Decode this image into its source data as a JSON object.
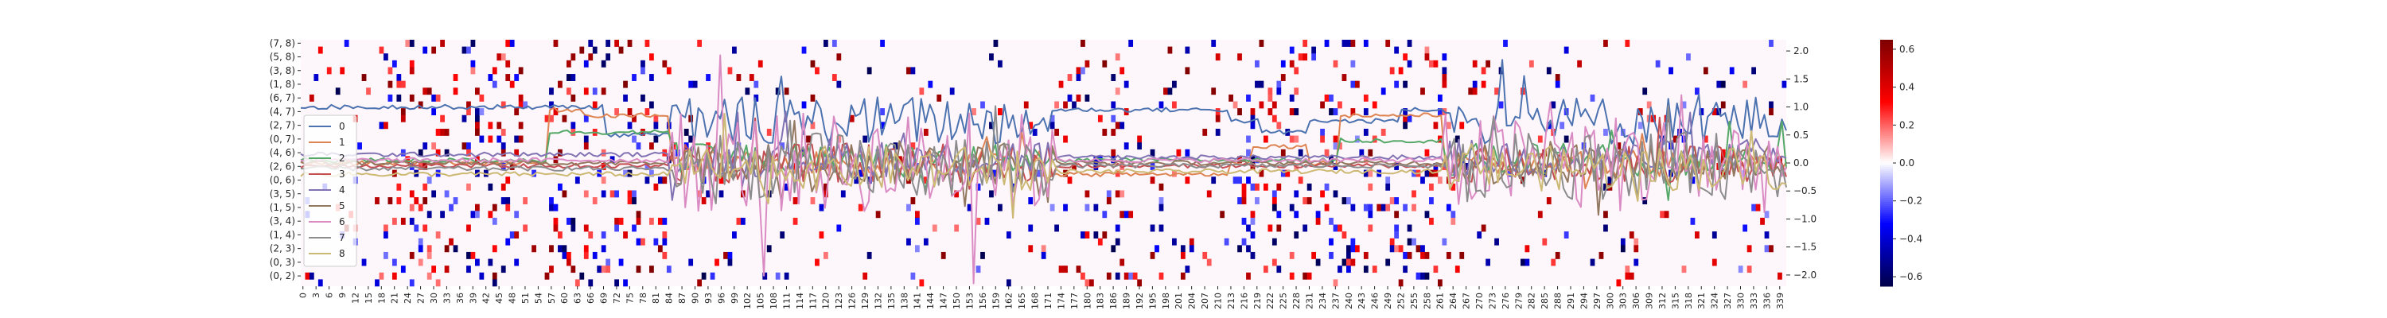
{
  "chart_data": {
    "type": "heatmap",
    "description_free": true,
    "heatmap": {
      "y_tick_labels": [
        "(7, 8)",
        "(5, 8)",
        "(3, 8)",
        "(1, 8)",
        "(6, 7)",
        "(4, 7)",
        "(2, 7)",
        "(0, 7)",
        "(4, 6)",
        "(2, 6)",
        "(0, 6)",
        "(3, 5)",
        "(1, 5)",
        "(3, 4)",
        "(1, 4)",
        "(2, 3)",
        "(0, 3)",
        "(0, 2)"
      ],
      "x_tick_labels": [
        "0",
        "3",
        "6",
        "9",
        "12",
        "15",
        "18",
        "21",
        "24",
        "27",
        "30",
        "33",
        "36",
        "39",
        "42",
        "45",
        "48",
        "51",
        "54",
        "57",
        "60",
        "63",
        "66",
        "69",
        "72",
        "75",
        "78",
        "81",
        "84",
        "87",
        "90",
        "93",
        "96",
        "99",
        "102",
        "105",
        "108",
        "111",
        "114",
        "117",
        "120",
        "123",
        "126",
        "129",
        "132",
        "135",
        "138",
        "141",
        "144",
        "147",
        "150",
        "153",
        "156",
        "159",
        "162",
        "165",
        "168",
        "171",
        "174",
        "177",
        "180",
        "183",
        "186",
        "189",
        "192",
        "195",
        "198",
        "201",
        "204",
        "207",
        "210",
        "213",
        "216",
        "219",
        "222",
        "225",
        "228",
        "231",
        "234",
        "237",
        "240",
        "243",
        "246",
        "249",
        "252",
        "255",
        "258",
        "261",
        "264",
        "267",
        "270",
        "273",
        "276",
        "279",
        "282",
        "285",
        "288",
        "291",
        "294",
        "297",
        "300",
        "303",
        "306",
        "309",
        "312",
        "315",
        "318",
        "321",
        "324",
        "327",
        "330",
        "333",
        "336",
        "339"
      ],
      "n_rows": 36,
      "n_cols": 341,
      "colormap": "seismic",
      "value_range": [
        -0.65,
        0.65
      ],
      "background_value_color": "#fdf7fb"
    },
    "colorbar": {
      "ticks": [
        "0.6",
        "0.4",
        "0.2",
        "0.0",
        "−0.2",
        "−0.4",
        "−0.6"
      ],
      "tick_values": [
        0.6,
        0.4,
        0.2,
        0.0,
        -0.2,
        -0.4,
        -0.6
      ],
      "range": [
        -0.65,
        0.65
      ]
    },
    "line_overlay": {
      "ylim": [
        -2.2,
        2.2
      ],
      "y_ticks": [
        "2.0",
        "1.5",
        "1.0",
        "0.5",
        "0.0",
        "−0.5",
        "−1.0",
        "−1.5",
        "−2.0"
      ],
      "y_tick_values": [
        2.0,
        1.5,
        1.0,
        0.5,
        0.0,
        -0.5,
        -1.0,
        -1.5,
        -2.0
      ],
      "x_range": [
        0,
        340
      ],
      "series": [
        {
          "name": "0",
          "color": "#4c72b0",
          "segments": [
            {
              "x": [
                0,
                70
              ],
              "level": 1.0
            },
            {
              "x": [
                70,
                84
              ],
              "level": 0.5
            },
            {
              "x": [
                173,
                212
              ],
              "level": 0.95
            },
            {
              "x": [
                220,
                230
              ],
              "level": 0.55
            },
            {
              "x": [
                252,
                262
              ],
              "level": 0.95
            }
          ],
          "noisy_ranges": [
            [
              85,
              172
            ],
            [
              262,
              340
            ]
          ],
          "noise_center": 0.75,
          "noise_amp": 0.45
        },
        {
          "name": "1",
          "color": "#dd8452",
          "segments": [
            {
              "x": [
                57,
                65
              ],
              "level": 0.95
            },
            {
              "x": [
                65,
                84
              ],
              "level": 0.85
            },
            {
              "x": [
                172,
                212
              ],
              "level": -0.2
            },
            {
              "x": [
                218,
                230
              ],
              "level": 0.3
            },
            {
              "x": [
                238,
                262
              ],
              "level": 0.85
            }
          ],
          "noisy_ranges": [
            [
              85,
              172
            ],
            [
              262,
              340
            ]
          ],
          "noise_center": 0.0,
          "noise_amp": 0.25
        },
        {
          "name": "2",
          "color": "#55a868",
          "segments": [
            {
              "x": [
                0,
                57
              ],
              "level": 0.05
            },
            {
              "x": [
                57,
                84
              ],
              "level": 0.55
            },
            {
              "x": [
                172,
                212
              ],
              "level": 0.05
            },
            {
              "x": [
                238,
                262
              ],
              "level": 0.4
            }
          ],
          "noisy_ranges": [
            [
              85,
              172
            ],
            [
              262,
              340
            ]
          ],
          "noise_center": 0.05,
          "noise_amp": 0.3
        },
        {
          "name": "3",
          "color": "#c44e52",
          "segments": [
            {
              "x": [
                0,
                84
              ],
              "level": -0.05
            },
            {
              "x": [
                172,
                262
              ],
              "level": -0.05
            }
          ],
          "noisy_ranges": [
            [
              85,
              172
            ],
            [
              262,
              340
            ]
          ],
          "noise_center": 0.0,
          "noise_amp": 0.35
        },
        {
          "name": "4",
          "color": "#8172b3",
          "segments": [
            {
              "x": [
                0,
                84
              ],
              "level": 0.15
            },
            {
              "x": [
                172,
                262
              ],
              "level": 0.1
            }
          ],
          "noisy_ranges": [
            [
              85,
              172
            ],
            [
              262,
              340
            ]
          ],
          "noise_center": 0.1,
          "noise_amp": 0.35
        },
        {
          "name": "5",
          "color": "#937860",
          "segments": [
            {
              "x": [
                0,
                84
              ],
              "level": 0.0
            },
            {
              "x": [
                172,
                262
              ],
              "level": 0.0
            }
          ],
          "noisy_ranges": [
            [
              85,
              172
            ],
            [
              262,
              340
            ]
          ],
          "noise_center": 0.0,
          "noise_amp": 0.4
        },
        {
          "name": "6",
          "color": "#da8bc3",
          "segments": [
            {
              "x": [
                0,
                84
              ],
              "level": 0.05
            },
            {
              "x": [
                172,
                262
              ],
              "level": 0.05
            }
          ],
          "noisy_ranges": [
            [
              85,
              172
            ],
            [
              262,
              340
            ]
          ],
          "noise_center": 0.0,
          "noise_amp": 0.9
        },
        {
          "name": "7",
          "color": "#8c8c8c",
          "segments": [
            {
              "x": [
                0,
                84
              ],
              "level": -0.1
            },
            {
              "x": [
                172,
                262
              ],
              "level": -0.05
            }
          ],
          "noisy_ranges": [
            [
              85,
              172
            ],
            [
              262,
              340
            ]
          ],
          "noise_center": -0.05,
          "noise_amp": 0.6
        },
        {
          "name": "8",
          "color": "#ccb974",
          "segments": [
            {
              "x": [
                0,
                84
              ],
              "level": -0.2
            },
            {
              "x": [
                172,
                262
              ],
              "level": -0.15
            }
          ],
          "noisy_ranges": [
            [
              85,
              172
            ],
            [
              262,
              340
            ]
          ],
          "noise_center": -0.1,
          "noise_amp": 0.4
        }
      ]
    },
    "legend": {
      "placement": "left",
      "entries": [
        "0",
        "1",
        "2",
        "3",
        "4",
        "5",
        "6",
        "7",
        "8"
      ]
    },
    "grid": false,
    "title": "",
    "xlabel": "",
    "ylabel": ""
  }
}
